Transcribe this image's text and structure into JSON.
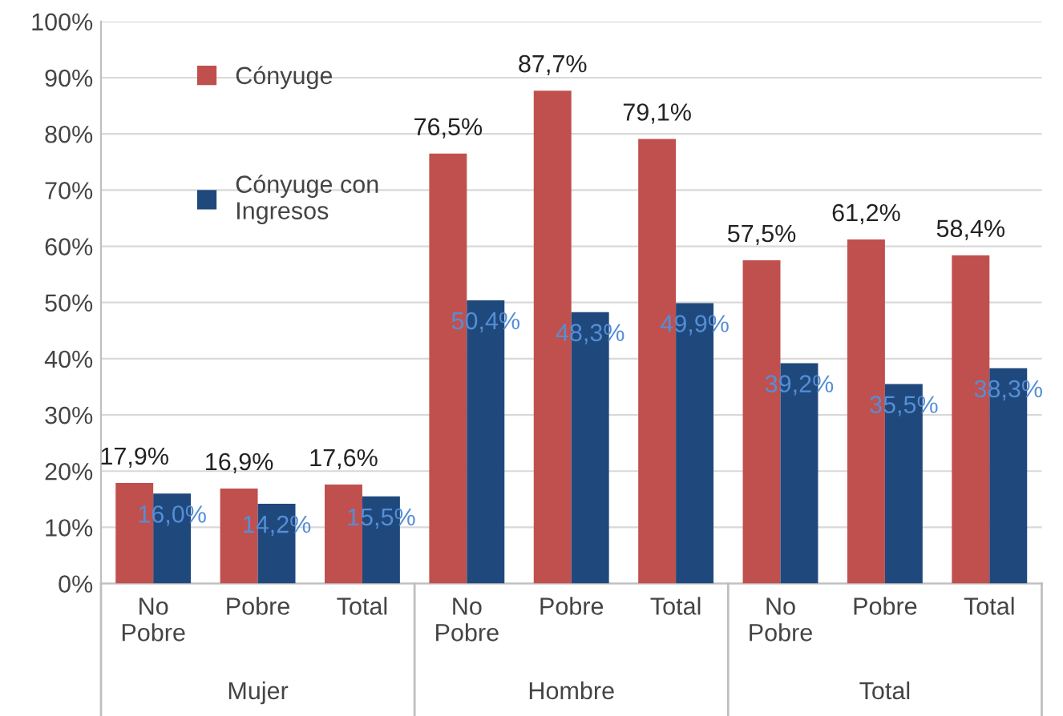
{
  "chart_data": {
    "type": "bar",
    "categories": [
      "No\nPobre",
      "Pobre",
      "Total",
      "No\nPobre",
      "Pobre",
      "Total",
      "No\nPobre",
      "Pobre",
      "Total"
    ],
    "annotations": [
      "Mujer",
      "Hombre",
      "Total"
    ],
    "series": [
      {
        "name": "Cónyuge",
        "color": "#c0504d",
        "values": [
          17.9,
          16.9,
          17.6,
          76.5,
          87.7,
          79.1,
          57.5,
          61.2,
          58.4
        ],
        "value_labels": [
          "17,9%",
          "16,9%",
          "17,6%",
          "76,5%",
          "87,7%",
          "79,1%",
          "57,5%",
          "61,2%",
          "58,4%"
        ]
      },
      {
        "name": "Cónyuge con\nIngresos",
        "color": "#1f497d",
        "values": [
          16.0,
          14.2,
          15.5,
          50.4,
          48.3,
          49.9,
          39.2,
          35.5,
          38.3
        ],
        "value_labels": [
          "16,0%",
          "14,2%",
          "15,5%",
          "50,4%",
          "48,3%",
          "49,9%",
          "39,2%",
          "35,5%",
          "38,3%"
        ]
      }
    ],
    "ylim": [
      0,
      100
    ],
    "yticks": [
      {
        "value": 0,
        "label": "0%"
      },
      {
        "value": 10,
        "label": "10%"
      },
      {
        "value": 20,
        "label": "20%"
      },
      {
        "value": 30,
        "label": "30%"
      },
      {
        "value": 40,
        "label": "40%"
      },
      {
        "value": 50,
        "label": "50%"
      },
      {
        "value": 60,
        "label": "60%"
      },
      {
        "value": 70,
        "label": "70%"
      },
      {
        "value": 80,
        "label": "80%"
      },
      {
        "value": 90,
        "label": "90%"
      },
      {
        "value": 100,
        "label": "100%"
      }
    ],
    "grid": "y",
    "legend": "top left"
  }
}
